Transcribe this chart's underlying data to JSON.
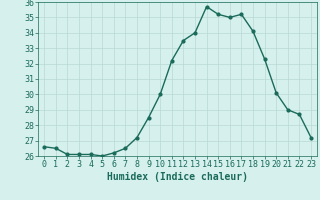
{
  "x": [
    0,
    1,
    2,
    3,
    4,
    5,
    6,
    7,
    8,
    9,
    10,
    11,
    12,
    13,
    14,
    15,
    16,
    17,
    18,
    19,
    20,
    21,
    22,
    23
  ],
  "y": [
    26.6,
    26.5,
    26.1,
    26.1,
    26.1,
    26.0,
    26.2,
    26.5,
    27.2,
    28.5,
    30.0,
    32.2,
    33.5,
    34.0,
    35.7,
    35.2,
    35.0,
    35.2,
    34.1,
    32.3,
    30.1,
    29.0,
    28.7,
    27.2
  ],
  "line_color": "#1a6b5a",
  "marker": "o",
  "marker_size": 2,
  "bg_color": "#d6f0ee",
  "grid_color": "#b8d8d4",
  "xlabel": "Humidex (Indice chaleur)",
  "ylim": [
    26,
    36
  ],
  "xlim": [
    -0.5,
    23.5
  ],
  "yticks": [
    26,
    27,
    28,
    29,
    30,
    31,
    32,
    33,
    34,
    35,
    36
  ],
  "xticks": [
    0,
    1,
    2,
    3,
    4,
    5,
    6,
    7,
    8,
    9,
    10,
    11,
    12,
    13,
    14,
    15,
    16,
    17,
    18,
    19,
    20,
    21,
    22,
    23
  ],
  "xlabel_fontsize": 7,
  "tick_fontsize": 6,
  "line_width": 1.0
}
